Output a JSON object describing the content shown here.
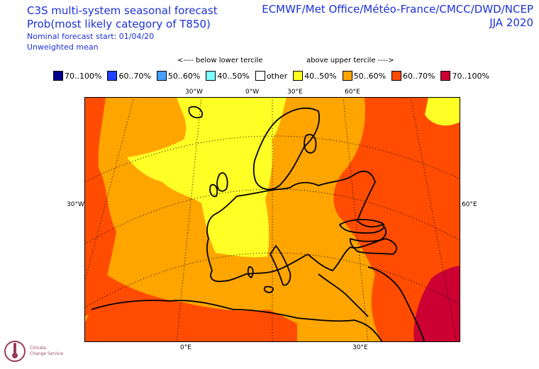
{
  "header": {
    "title": "C3S multi-system seasonal forecast",
    "subtitle": "Prob(most likely category of T850)",
    "start": "Nominal forecast start: 01/04/20",
    "method": "Unweighted mean",
    "centres": "ECMWF/Met Office/Météo-France/CMCC/DWD/NCEP",
    "season": "JJA 2020"
  },
  "legend": {
    "below_label": "<---- below lower tercile",
    "above_label": "above upper tercile ---->",
    "items": [
      {
        "label": "70..100%",
        "color": "#00008b"
      },
      {
        "label": "60..70%",
        "color": "#2140ff"
      },
      {
        "label": "50..60%",
        "color": "#47a0ff"
      },
      {
        "label": "40..50%",
        "color": "#7fffff"
      },
      {
        "label": "other",
        "color": "#ffffff"
      },
      {
        "label": "40..50%",
        "color": "#ffff26"
      },
      {
        "label": "50..60%",
        "color": "#ffa500"
      },
      {
        "label": "60..70%",
        "color": "#ff4c00"
      },
      {
        "label": "70..100%",
        "color": "#cc0033"
      }
    ]
  },
  "axes": {
    "top": [
      "30°W",
      "0°W",
      "30°E",
      "60°E"
    ],
    "left": "30°W",
    "right": "60°E",
    "bottom": [
      "0°E",
      "30°E"
    ]
  },
  "logo": {
    "line1": "Climate",
    "line2": "Change Service"
  }
}
